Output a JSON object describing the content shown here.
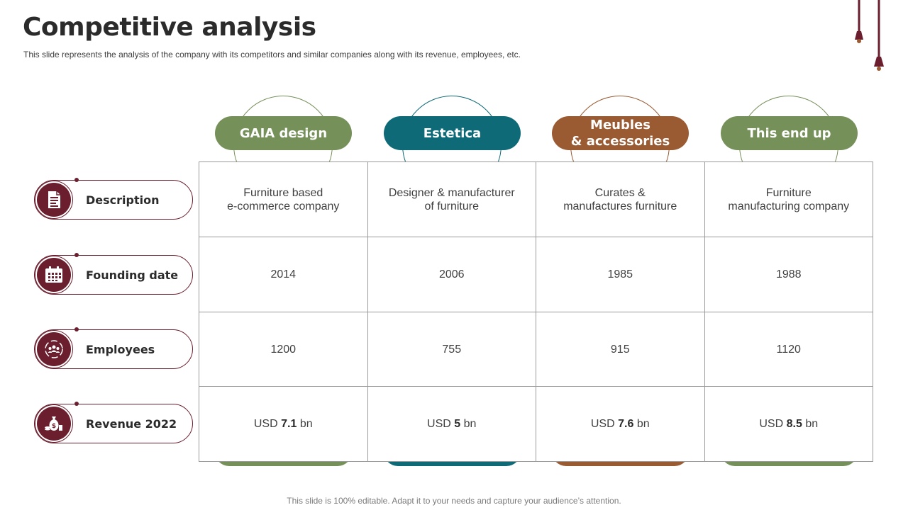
{
  "slide": {
    "title": "Competitive analysis",
    "subtitle": "This slide represents the analysis of the company with its competitors and similar companies along with its revenue, employees, etc.",
    "footer": "This slide is 100% editable. Adapt it to your needs and capture your audience’s attention."
  },
  "colors": {
    "accent": "#6b1e2e",
    "green": "#76905a",
    "teal": "#0e6a77",
    "brown": "#9a5a32"
  },
  "companies": [
    {
      "name": "GAIA design",
      "color": "#76905a"
    },
    {
      "name": "Estetica",
      "color": "#0e6a77"
    },
    {
      "name": "Meubles\n& accessories",
      "color": "#9a5a32"
    },
    {
      "name": "This end up",
      "color": "#76905a"
    }
  ],
  "rows": [
    {
      "label": "Description",
      "icon": "document-icon"
    },
    {
      "label": "Founding date",
      "icon": "calendar-icon"
    },
    {
      "label": "Employees",
      "icon": "team-icon"
    },
    {
      "label": "Revenue 2022",
      "icon": "money-bag-icon"
    }
  ],
  "table": {
    "description": [
      "Furniture based\ne-commerce company",
      "Designer & manufacturer\nof furniture",
      "Curates &\nmanufactures furniture",
      "Furniture\nmanufacturing company"
    ],
    "founding": [
      "2014",
      "2006",
      "1985",
      "1988"
    ],
    "employees": [
      "1200",
      "755",
      "915",
      "1120"
    ],
    "revenue_prefix": "USD",
    "revenue_values": [
      "7.1",
      "5",
      "7.6",
      "8.5"
    ],
    "revenue_unit": "bn"
  }
}
